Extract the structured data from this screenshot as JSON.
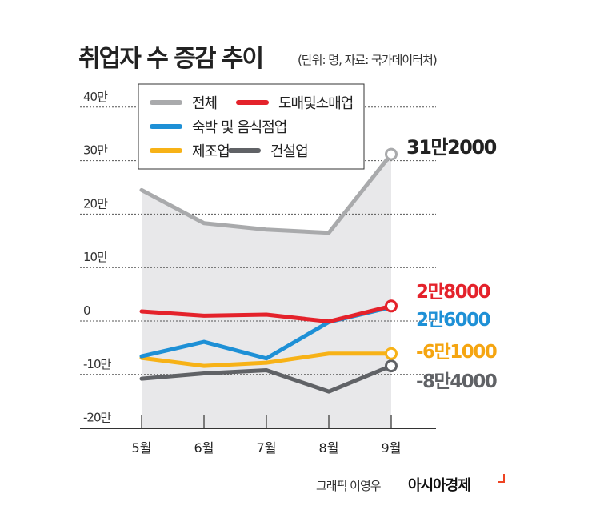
{
  "chart_data": {
    "type": "line",
    "title": "취업자 수 증감 추이",
    "subtitle": "(단위: 명, 자료: 국가데이터처)",
    "categories": [
      "5월",
      "6월",
      "7월",
      "8월",
      "9월"
    ],
    "yticks": [
      "40만",
      "30만",
      "20만",
      "10만",
      "0",
      "-10만",
      "-20만"
    ],
    "ylim": [
      -200000,
      400000
    ],
    "grid": true,
    "legend": "top-left",
    "series": [
      {
        "name": "전체",
        "color": "#a9aaac",
        "values": [
          245000,
          183000,
          171000,
          165000,
          312000
        ],
        "end_label": "31만2000",
        "label_color": "#222222",
        "area": true
      },
      {
        "name": "도매및소매업",
        "color": "#e4222b",
        "values": [
          18000,
          10000,
          12000,
          -1000,
          28000
        ],
        "end_label": "2만8000",
        "label_color": "#e4222b"
      },
      {
        "name": "숙박 및 음식점업",
        "color": "#1e90d6",
        "values": [
          -66000,
          -39000,
          -70000,
          -2000,
          26000
        ],
        "end_label": "2만6000",
        "label_color": "#1e90d6"
      },
      {
        "name": "제조업",
        "color": "#f7b217",
        "values": [
          -69000,
          -84000,
          -78000,
          -61000,
          -61000
        ],
        "end_label": "-6만1000",
        "label_color": "#f5a511"
      },
      {
        "name": "건설업",
        "color": "#606266",
        "values": [
          -108000,
          -98000,
          -92000,
          -132000,
          -84000
        ],
        "end_label": "-8만4000",
        "label_color": "#606266"
      }
    ]
  },
  "credit": "그래픽 이영우",
  "brand": "아시아경제"
}
